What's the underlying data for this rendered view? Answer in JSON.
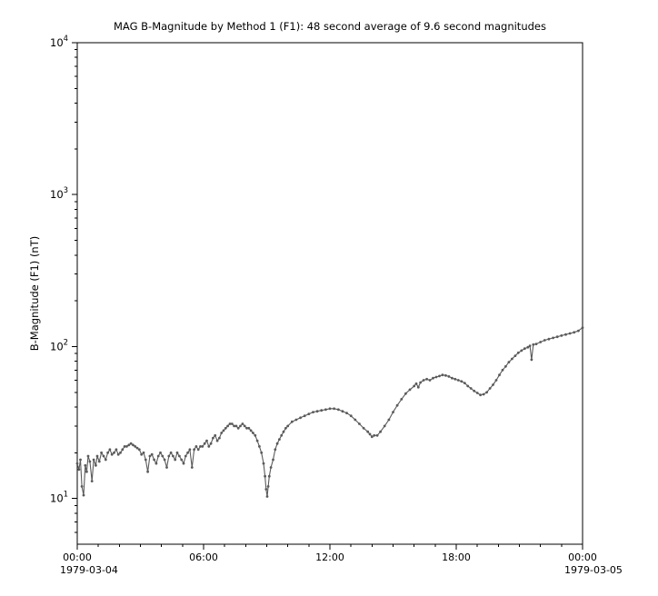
{
  "chart_data": {
    "type": "line",
    "title": "MAG  B-Magnitude by Method 1 (F1): 48 second average of 9.6 second magnitudes",
    "xlabel": "",
    "ylabel": "B-Magnitude (F1) (nT)",
    "y_scale": "log",
    "ylim": [
      5,
      10000
    ],
    "xlim_hours": [
      0,
      24
    ],
    "y_tick_exponents": [
      1,
      2,
      3,
      4
    ],
    "x_ticks": [
      {
        "t": 0,
        "label": "00:00"
      },
      {
        "t": 6,
        "label": "06:00"
      },
      {
        "t": 12,
        "label": "12:00"
      },
      {
        "t": 18,
        "label": "18:00"
      },
      {
        "t": 24,
        "label": "00:00"
      }
    ],
    "x_date_left": "1979-03-04",
    "x_date_right": "1979-03-05",
    "grid": false,
    "legend": "none",
    "line_color": "#5a5a5a",
    "axis_color": "#000000",
    "points_t_hours_vs_nT": [
      [
        0,
        17
      ],
      [
        0.08,
        15.5
      ],
      [
        0.15,
        18
      ],
      [
        0.22,
        12
      ],
      [
        0.3,
        10.5
      ],
      [
        0.38,
        16.5
      ],
      [
        0.45,
        15
      ],
      [
        0.52,
        19
      ],
      [
        0.6,
        17.5
      ],
      [
        0.7,
        13
      ],
      [
        0.78,
        18
      ],
      [
        0.88,
        16.5
      ],
      [
        0.95,
        19
      ],
      [
        1.05,
        17.5
      ],
      [
        1.15,
        20
      ],
      [
        1.25,
        19
      ],
      [
        1.35,
        18
      ],
      [
        1.45,
        20
      ],
      [
        1.55,
        21
      ],
      [
        1.65,
        19.5
      ],
      [
        1.75,
        20
      ],
      [
        1.85,
        21
      ],
      [
        1.95,
        19.5
      ],
      [
        2.05,
        20
      ],
      [
        2.15,
        21
      ],
      [
        2.25,
        22
      ],
      [
        2.35,
        22
      ],
      [
        2.45,
        22.5
      ],
      [
        2.55,
        23
      ],
      [
        2.65,
        22.5
      ],
      [
        2.75,
        22
      ],
      [
        2.85,
        21.5
      ],
      [
        2.95,
        21
      ],
      [
        3.05,
        19.5
      ],
      [
        3.15,
        20
      ],
      [
        3.25,
        18
      ],
      [
        3.35,
        15
      ],
      [
        3.45,
        19
      ],
      [
        3.55,
        19.5
      ],
      [
        3.65,
        18
      ],
      [
        3.75,
        17
      ],
      [
        3.85,
        19
      ],
      [
        3.95,
        20
      ],
      [
        4.05,
        19
      ],
      [
        4.15,
        18
      ],
      [
        4.25,
        16
      ],
      [
        4.35,
        19
      ],
      [
        4.45,
        20
      ],
      [
        4.55,
        19
      ],
      [
        4.65,
        18
      ],
      [
        4.75,
        20
      ],
      [
        4.85,
        19
      ],
      [
        4.95,
        18
      ],
      [
        5.05,
        17
      ],
      [
        5.15,
        19
      ],
      [
        5.25,
        20
      ],
      [
        5.35,
        21
      ],
      [
        5.45,
        16
      ],
      [
        5.55,
        21
      ],
      [
        5.65,
        22
      ],
      [
        5.75,
        21
      ],
      [
        5.85,
        22
      ],
      [
        5.95,
        22
      ],
      [
        6.05,
        23
      ],
      [
        6.15,
        24
      ],
      [
        6.25,
        22
      ],
      [
        6.35,
        23
      ],
      [
        6.45,
        25
      ],
      [
        6.55,
        26
      ],
      [
        6.65,
        24
      ],
      [
        6.75,
        25
      ],
      [
        6.85,
        27
      ],
      [
        6.95,
        28
      ],
      [
        7.05,
        29
      ],
      [
        7.15,
        30
      ],
      [
        7.25,
        31
      ],
      [
        7.35,
        31
      ],
      [
        7.45,
        30
      ],
      [
        7.55,
        30
      ],
      [
        7.65,
        29
      ],
      [
        7.75,
        30
      ],
      [
        7.85,
        31
      ],
      [
        7.95,
        30
      ],
      [
        8.05,
        29
      ],
      [
        8.15,
        29
      ],
      [
        8.25,
        28
      ],
      [
        8.35,
        27
      ],
      [
        8.45,
        26
      ],
      [
        8.55,
        24
      ],
      [
        8.65,
        22
      ],
      [
        8.75,
        20
      ],
      [
        8.85,
        17
      ],
      [
        8.92,
        14
      ],
      [
        8.97,
        11.5
      ],
      [
        9.02,
        10.3
      ],
      [
        9.07,
        12
      ],
      [
        9.12,
        14
      ],
      [
        9.2,
        16
      ],
      [
        9.3,
        18
      ],
      [
        9.4,
        21
      ],
      [
        9.5,
        23
      ],
      [
        9.6,
        24.5
      ],
      [
        9.7,
        26
      ],
      [
        9.8,
        27.5
      ],
      [
        9.9,
        29
      ],
      [
        10,
        30
      ],
      [
        10.2,
        32
      ],
      [
        10.4,
        33
      ],
      [
        10.6,
        34
      ],
      [
        10.8,
        35
      ],
      [
        11,
        36
      ],
      [
        11.2,
        37
      ],
      [
        11.4,
        37.5
      ],
      [
        11.6,
        38
      ],
      [
        11.8,
        38.5
      ],
      [
        12,
        39
      ],
      [
        12.2,
        39
      ],
      [
        12.4,
        38.5
      ],
      [
        12.6,
        37.5
      ],
      [
        12.8,
        36.5
      ],
      [
        13,
        35
      ],
      [
        13.2,
        33
      ],
      [
        13.4,
        31
      ],
      [
        13.6,
        29
      ],
      [
        13.8,
        27.5
      ],
      [
        13.9,
        26.5
      ],
      [
        14,
        25.5
      ],
      [
        14.1,
        26
      ],
      [
        14.25,
        26
      ],
      [
        14.4,
        27.5
      ],
      [
        14.6,
        30
      ],
      [
        14.8,
        33
      ],
      [
        15,
        37
      ],
      [
        15.2,
        41
      ],
      [
        15.4,
        45
      ],
      [
        15.6,
        49
      ],
      [
        15.8,
        52
      ],
      [
        16,
        55
      ],
      [
        16.1,
        57
      ],
      [
        16.2,
        54
      ],
      [
        16.3,
        58
      ],
      [
        16.45,
        60
      ],
      [
        16.6,
        61
      ],
      [
        16.75,
        60
      ],
      [
        16.9,
        62
      ],
      [
        17.05,
        63
      ],
      [
        17.2,
        64
      ],
      [
        17.35,
        65
      ],
      [
        17.5,
        64.5
      ],
      [
        17.65,
        63.5
      ],
      [
        17.8,
        62
      ],
      [
        17.95,
        61
      ],
      [
        18.1,
        60
      ],
      [
        18.25,
        59
      ],
      [
        18.4,
        57.5
      ],
      [
        18.55,
        55
      ],
      [
        18.7,
        53
      ],
      [
        18.85,
        51
      ],
      [
        19,
        49.5
      ],
      [
        19.15,
        48
      ],
      [
        19.3,
        48.5
      ],
      [
        19.45,
        50
      ],
      [
        19.6,
        53
      ],
      [
        19.75,
        56
      ],
      [
        19.9,
        60
      ],
      [
        20.05,
        65
      ],
      [
        20.2,
        70
      ],
      [
        20.35,
        74
      ],
      [
        20.5,
        79
      ],
      [
        20.65,
        83
      ],
      [
        20.8,
        87
      ],
      [
        20.95,
        91
      ],
      [
        21.1,
        94
      ],
      [
        21.25,
        97
      ],
      [
        21.4,
        99
      ],
      [
        21.5,
        101
      ],
      [
        21.58,
        82
      ],
      [
        21.66,
        103
      ],
      [
        21.8,
        104
      ],
      [
        22,
        107
      ],
      [
        22.2,
        110
      ],
      [
        22.4,
        112
      ],
      [
        22.6,
        114
      ],
      [
        22.8,
        116
      ],
      [
        23,
        118
      ],
      [
        23.2,
        120
      ],
      [
        23.4,
        122
      ],
      [
        23.6,
        124
      ],
      [
        23.8,
        127
      ],
      [
        24,
        133
      ]
    ]
  }
}
